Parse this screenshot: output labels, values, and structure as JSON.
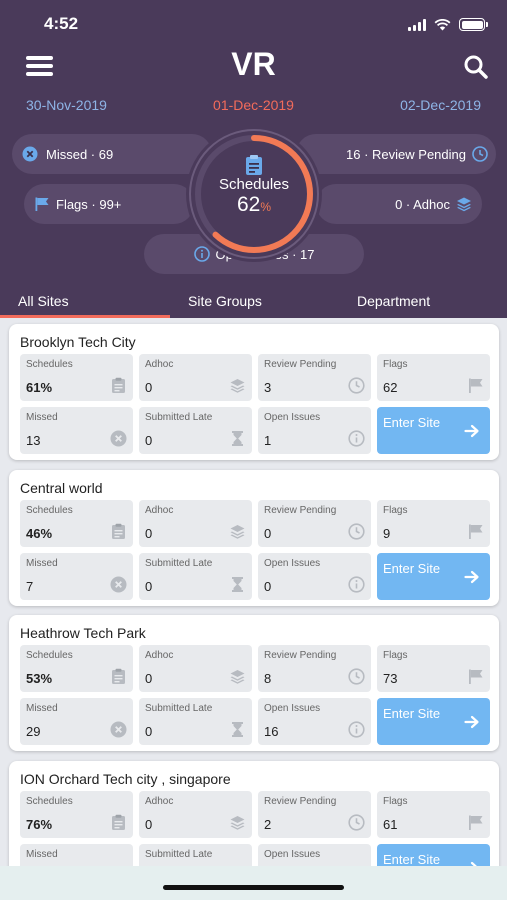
{
  "status": {
    "time": "4:52"
  },
  "header": {
    "title": "VR",
    "dates": {
      "prev": "30-Nov-2019",
      "current": "01-Dec-2019",
      "next": "02-Dec-2019"
    }
  },
  "summary": {
    "missed": "Missed · 69",
    "review_pending": "16 · Review Pending",
    "flags": "Flags · 99+",
    "adhoc": "0 · Adhoc",
    "open_issues": "Open Issues · 17",
    "schedules_label": "Schedules",
    "schedules_value": "62",
    "schedules_unit": "%",
    "schedules_progress": 0.62
  },
  "tabs": [
    "All Sites",
    "Site Groups",
    "Department"
  ],
  "labels": {
    "schedules": "Schedules",
    "adhoc": "Adhoc",
    "review_pending": "Review Pending",
    "flags": "Flags",
    "missed": "Missed",
    "submitted_late": "Submitted Late",
    "open_issues": "Open Issues",
    "enter_site": "Enter Site"
  },
  "sites": [
    {
      "name": "Brooklyn Tech City",
      "schedules": "61%",
      "adhoc": "0",
      "review_pending": "3",
      "flags": "62",
      "missed": "13",
      "submitted_late": "0",
      "open_issues": "1"
    },
    {
      "name": "Central world",
      "schedules": "46%",
      "adhoc": "0",
      "review_pending": "0",
      "flags": "9",
      "missed": "7",
      "submitted_late": "0",
      "open_issues": "0"
    },
    {
      "name": "Heathrow  Tech Park",
      "schedules": "53%",
      "adhoc": "0",
      "review_pending": "8",
      "flags": "73",
      "missed": "29",
      "submitted_late": "0",
      "open_issues": "16"
    },
    {
      "name": "ION Orchard Tech city , singapore",
      "schedules": "76%",
      "adhoc": "0",
      "review_pending": "2",
      "flags": "61",
      "missed": "",
      "submitted_late": "",
      "open_issues": ""
    }
  ],
  "icons": {
    "menu": "menu-icon",
    "search": "search-icon",
    "missed": "x-circle-icon",
    "review": "clock-icon",
    "flags": "flag-icon",
    "adhoc": "layers-icon",
    "issues": "info-icon",
    "schedules": "clipboard-icon",
    "late": "hourglass-icon",
    "enter": "arrow-right-icon"
  },
  "colors": {
    "header_bg": "#4a3a5a",
    "pill_bg": "#5a4a6b",
    "accent": "#f26b5b",
    "date_link": "#8eb4e6",
    "enter_button": "#72b7f2"
  }
}
